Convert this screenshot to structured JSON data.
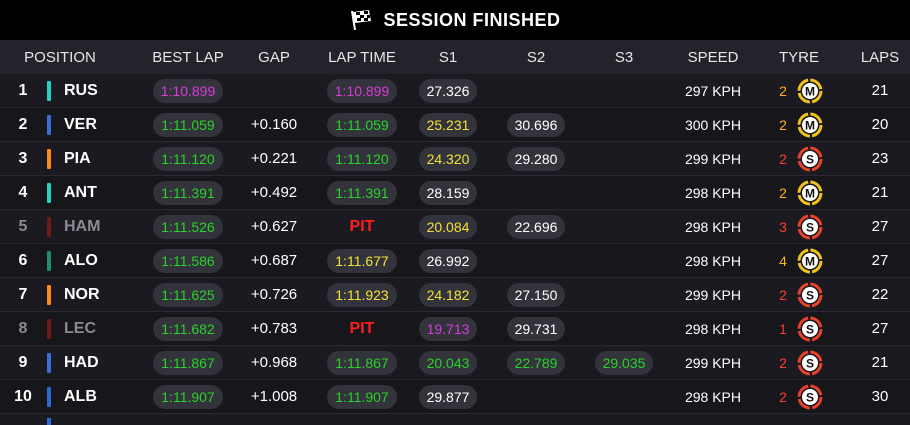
{
  "header": {
    "title": "SESSION FINISHED",
    "icon": "checkered-flag-icon"
  },
  "columns": {
    "position": "POSITION",
    "best_lap": "BEST LAP",
    "gap": "GAP",
    "lap_time": "LAP TIME",
    "s1": "S1",
    "s2": "S2",
    "s3": "S3",
    "speed": "SPEED",
    "tyre": "TYRE",
    "laps": "LAPS"
  },
  "colors": {
    "fastest": "#d93ad9",
    "personal_best": "#2bd02b",
    "yellow": "#f5e03a",
    "pit": "#ff1e1e",
    "medium": "#f2c21a",
    "soft": "#e8412b"
  },
  "rows": [
    {
      "pos": "1",
      "driver": "RUS",
      "team_color": "#27d3c0",
      "retired": false,
      "best_lap": "1:10.899",
      "best_color": "purple",
      "gap": "",
      "lap_time": "1:10.899",
      "lap_color": "purple",
      "lap_pit": false,
      "s1": "27.326",
      "s1_color": "white",
      "s2": "",
      "s2_color": "white",
      "s3": "",
      "s3_color": "white",
      "speed": "297 KPH",
      "tyre_age": "2",
      "tyre_age_color": "orange",
      "tyre": "M",
      "tyre_type": "medium",
      "laps": "21"
    },
    {
      "pos": "2",
      "driver": "VER",
      "team_color": "#3a6fd8",
      "retired": false,
      "best_lap": "1:11.059",
      "best_color": "green",
      "gap": "+0.160",
      "lap_time": "1:11.059",
      "lap_color": "green",
      "lap_pit": false,
      "s1": "25.231",
      "s1_color": "yellow",
      "s2": "30.696",
      "s2_color": "white",
      "s3": "",
      "s3_color": "white",
      "speed": "300 KPH",
      "tyre_age": "2",
      "tyre_age_color": "orange",
      "tyre": "M",
      "tyre_type": "medium",
      "laps": "20"
    },
    {
      "pos": "3",
      "driver": "PIA",
      "team_color": "#ff8a1f",
      "retired": false,
      "best_lap": "1:11.120",
      "best_color": "green",
      "gap": "+0.221",
      "lap_time": "1:11.120",
      "lap_color": "green",
      "lap_pit": false,
      "s1": "24.320",
      "s1_color": "yellow",
      "s2": "29.280",
      "s2_color": "white",
      "s3": "",
      "s3_color": "white",
      "speed": "299 KPH",
      "tyre_age": "2",
      "tyre_age_color": "red",
      "tyre": "S",
      "tyre_type": "soft",
      "laps": "23"
    },
    {
      "pos": "4",
      "driver": "ANT",
      "team_color": "#27d3c0",
      "retired": false,
      "best_lap": "1:11.391",
      "best_color": "green",
      "gap": "+0.492",
      "lap_time": "1:11.391",
      "lap_color": "green",
      "lap_pit": false,
      "s1": "28.159",
      "s1_color": "white",
      "s2": "",
      "s2_color": "white",
      "s3": "",
      "s3_color": "white",
      "speed": "298 KPH",
      "tyre_age": "2",
      "tyre_age_color": "orange",
      "tyre": "M",
      "tyre_type": "medium",
      "laps": "21"
    },
    {
      "pos": "5",
      "driver": "HAM",
      "team_color": "#6e1a1a",
      "retired": true,
      "best_lap": "1:11.526",
      "best_color": "green",
      "gap": "+0.627",
      "lap_time": "PIT",
      "lap_color": "pit",
      "lap_pit": true,
      "s1": "20.084",
      "s1_color": "yellow",
      "s2": "22.696",
      "s2_color": "white",
      "s3": "",
      "s3_color": "white",
      "speed": "298 KPH",
      "tyre_age": "3",
      "tyre_age_color": "red",
      "tyre": "S",
      "tyre_type": "soft",
      "laps": "27"
    },
    {
      "pos": "6",
      "driver": "ALO",
      "team_color": "#1f8f6a",
      "retired": false,
      "best_lap": "1:11.586",
      "best_color": "green",
      "gap": "+0.687",
      "lap_time": "1:11.677",
      "lap_color": "yellow",
      "lap_pit": false,
      "s1": "26.992",
      "s1_color": "white",
      "s2": "",
      "s2_color": "white",
      "s3": "",
      "s3_color": "white",
      "speed": "298 KPH",
      "tyre_age": "4",
      "tyre_age_color": "orange",
      "tyre": "M",
      "tyre_type": "medium",
      "laps": "27"
    },
    {
      "pos": "7",
      "driver": "NOR",
      "team_color": "#ff8a1f",
      "retired": false,
      "best_lap": "1:11.625",
      "best_color": "green",
      "gap": "+0.726",
      "lap_time": "1:11.923",
      "lap_color": "yellow",
      "lap_pit": false,
      "s1": "24.182",
      "s1_color": "yellow",
      "s2": "27.150",
      "s2_color": "white",
      "s3": "",
      "s3_color": "white",
      "speed": "299 KPH",
      "tyre_age": "2",
      "tyre_age_color": "red",
      "tyre": "S",
      "tyre_type": "soft",
      "laps": "22"
    },
    {
      "pos": "8",
      "driver": "LEC",
      "team_color": "#6e1a1a",
      "retired": true,
      "best_lap": "1:11.682",
      "best_color": "green",
      "gap": "+0.783",
      "lap_time": "PIT",
      "lap_color": "pit",
      "lap_pit": true,
      "s1": "19.713",
      "s1_color": "purple",
      "s2": "29.731",
      "s2_color": "white",
      "s3": "",
      "s3_color": "white",
      "speed": "298 KPH",
      "tyre_age": "1",
      "tyre_age_color": "red",
      "tyre": "S",
      "tyre_type": "soft",
      "laps": "27"
    },
    {
      "pos": "9",
      "driver": "HAD",
      "team_color": "#3a6fd8",
      "retired": false,
      "best_lap": "1:11.867",
      "best_color": "green",
      "gap": "+0.968",
      "lap_time": "1:11.867",
      "lap_color": "green",
      "lap_pit": false,
      "s1": "20.043",
      "s1_color": "green",
      "s2": "22.789",
      "s2_color": "green",
      "s3": "29.035",
      "s3_color": "green",
      "speed": "299 KPH",
      "tyre_age": "2",
      "tyre_age_color": "red",
      "tyre": "S",
      "tyre_type": "soft",
      "laps": "21"
    },
    {
      "pos": "10",
      "driver": "ALB",
      "team_color": "#2a6bd6",
      "retired": false,
      "best_lap": "1:11.907",
      "best_color": "green",
      "gap": "+1.008",
      "lap_time": "1:11.907",
      "lap_color": "green",
      "lap_pit": false,
      "s1": "29.877",
      "s1_color": "white",
      "s2": "",
      "s2_color": "white",
      "s3": "",
      "s3_color": "white",
      "speed": "298 KPH",
      "tyre_age": "2",
      "tyre_age_color": "red",
      "tyre": "S",
      "tyre_type": "soft",
      "laps": "30"
    }
  ]
}
